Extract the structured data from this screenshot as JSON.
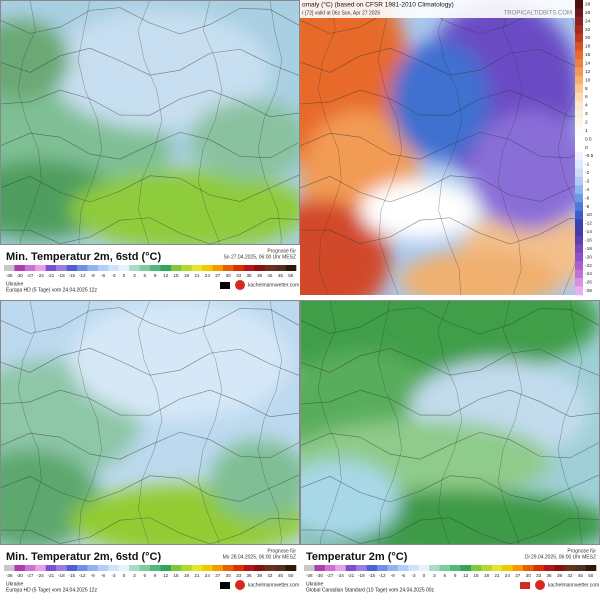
{
  "panels": [
    {
      "title": "Min. Temperatur 2m, 6std (°C)",
      "forecast_label": "Prognose für",
      "forecast": "So 27.04.2025, 06:00 Uhr MESZ",
      "region": "Ukraine",
      "model": "Europa HD (5 Tage) vom 24.04.2025 12z",
      "scale": [
        "-36",
        "-30",
        "-27",
        "-24",
        "-21",
        "-18",
        "-15",
        "-12",
        "-9",
        "-6",
        "-3",
        "0",
        "3",
        "6",
        "9",
        "12",
        "15",
        "18",
        "21",
        "24",
        "27",
        "30",
        "33",
        "36",
        "39",
        "42",
        "45",
        "50"
      ]
    },
    {
      "title": "Min. Temperatur 2m, 6std (°C)",
      "forecast_label": "Prognose für",
      "forecast": "Mo 28.04.2025, 06:00 Uhr MESZ",
      "region": "Ukraine",
      "model": "Europa HD (5 Tage) vom 24.04.2025 12z",
      "scale": [
        "-36",
        "-30",
        "-27",
        "-24",
        "-21",
        "-18",
        "-15",
        "-12",
        "-9",
        "-6",
        "-3",
        "0",
        "3",
        "6",
        "9",
        "12",
        "15",
        "18",
        "21",
        "24",
        "27",
        "30",
        "33",
        "36",
        "39",
        "42",
        "45",
        "50"
      ]
    },
    {
      "title": "Temperatur 2m (°C)",
      "forecast_label": "Prognose für",
      "forecast": "Di 29.04.2025, 06:00 Uhr MESZ",
      "region": "Ukraine",
      "model": "Global Canadian Standard (10 Tage) vom 24.04.2025 00z",
      "scale": [
        "-36",
        "-30",
        "-27",
        "-24",
        "-21",
        "-18",
        "-15",
        "-12",
        "-9",
        "-6",
        "-3",
        "0",
        "3",
        "6",
        "9",
        "12",
        "15",
        "18",
        "21",
        "24",
        "27",
        "30",
        "33",
        "36",
        "39",
        "42",
        "45",
        "50"
      ]
    }
  ],
  "anomaly": {
    "title": "omaly (°C) (based on CFSR 1981-2010 Climatology)",
    "subtitle": "r [72]  valid at 06z Sun, Apr 27 2025",
    "site": "TROPICALTIDBITS.COM",
    "scale": [
      "28",
      "26",
      "24",
      "22",
      "20",
      "18",
      "16",
      "14",
      "12",
      "10",
      "8",
      "6",
      "4",
      "3",
      "2",
      "1",
      "0.5",
      "0",
      "-0.5",
      "-1",
      "-2",
      "-3",
      "-4",
      "-6",
      "-8",
      "-10",
      "-12",
      "-14",
      "-16",
      "-18",
      "-20",
      "-22",
      "-24",
      "-26",
      "-28"
    ]
  },
  "brand": "kachelmannwetter.com"
}
